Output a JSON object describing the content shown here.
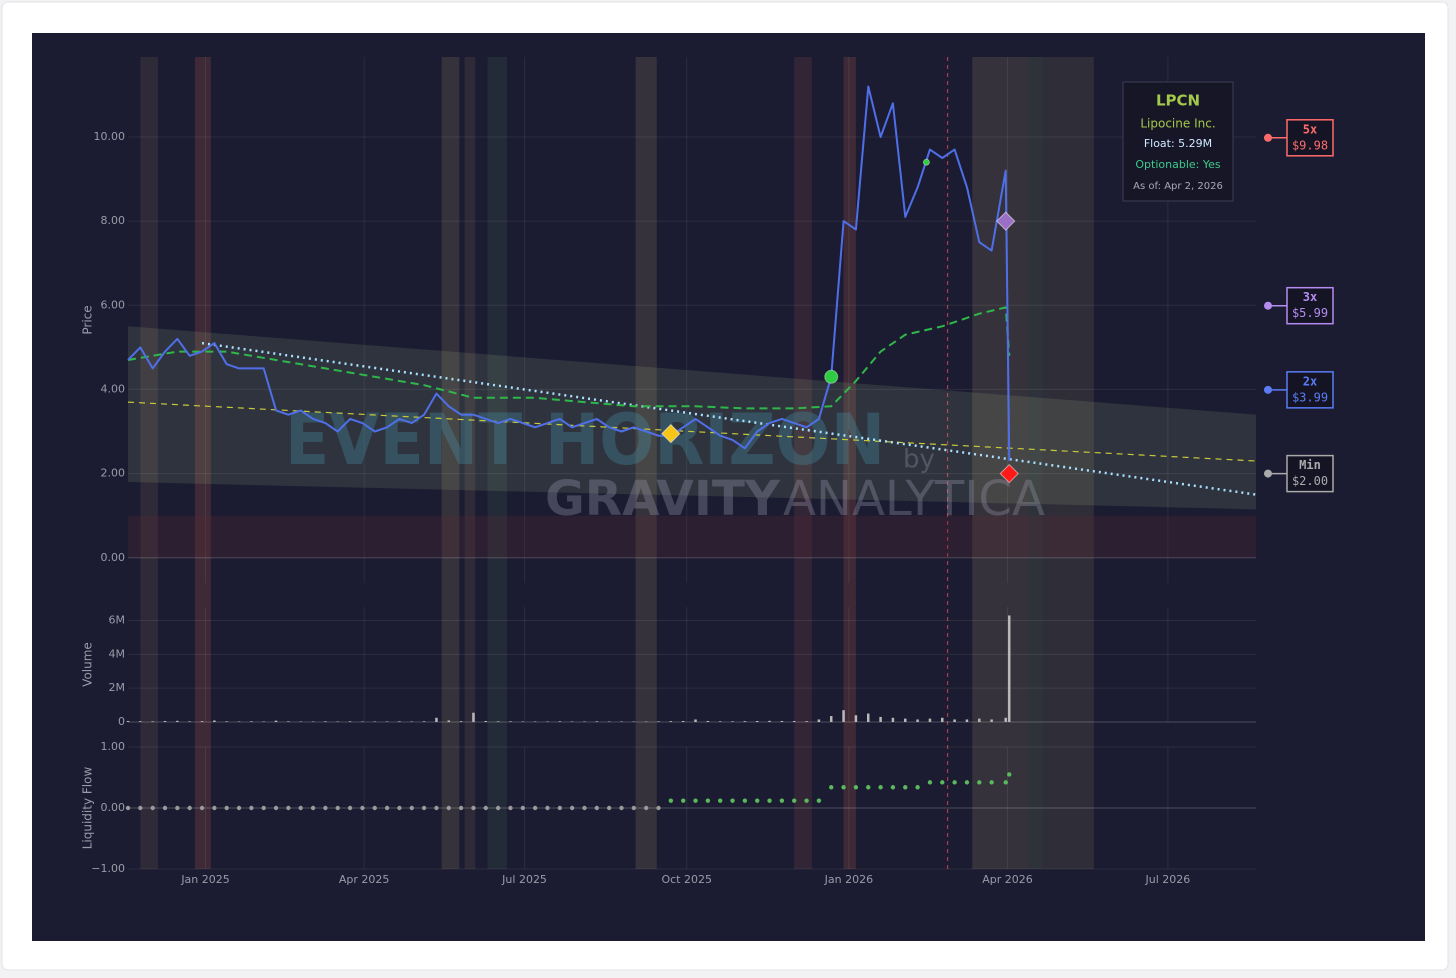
{
  "chart_data": [
    {
      "type": "line",
      "y_label": "Price",
      "xlim": [
        "2024-11-18",
        "2026-08-20"
      ],
      "ylim": [
        -0.6,
        11.9
      ],
      "yticks": [
        {
          "value": 0,
          "label": "0.00"
        },
        {
          "value": 2,
          "label": "2.00"
        },
        {
          "value": 4,
          "label": "4.00"
        },
        {
          "value": 6,
          "label": "6.00"
        },
        {
          "value": 8,
          "label": "8.00"
        },
        {
          "value": 10,
          "label": "10.00"
        }
      ],
      "grid": true,
      "series": [
        {
          "color": "#4f6fe8",
          "width": 2,
          "x": [
            "2024-11-18",
            "2024-11-25",
            "2024-12-02",
            "2024-12-09",
            "2024-12-16",
            "2024-12-23",
            "2024-12-30",
            "2025-01-06",
            "2025-01-13",
            "2025-01-20",
            "2025-01-27",
            "2025-02-03",
            "2025-02-10",
            "2025-02-17",
            "2025-02-24",
            "2025-03-03",
            "2025-03-10",
            "2025-03-17",
            "2025-03-24",
            "2025-03-31",
            "2025-04-07",
            "2025-04-14",
            "2025-04-21",
            "2025-04-28",
            "2025-05-05",
            "2025-05-12",
            "2025-05-19",
            "2025-05-26",
            "2025-06-02",
            "2025-06-09",
            "2025-06-16",
            "2025-06-23",
            "2025-06-30",
            "2025-07-07",
            "2025-07-14",
            "2025-07-21",
            "2025-07-28",
            "2025-08-04",
            "2025-08-11",
            "2025-08-18",
            "2025-08-25",
            "2025-09-01",
            "2025-09-08",
            "2025-09-15",
            "2025-09-22",
            "2025-09-29",
            "2025-10-06",
            "2025-10-13",
            "2025-10-20",
            "2025-10-27",
            "2025-11-03",
            "2025-11-10",
            "2025-11-17",
            "2025-11-24",
            "2025-12-01",
            "2025-12-08",
            "2025-12-15",
            "2025-12-22",
            "2025-12-29",
            "2026-01-05",
            "2026-01-12",
            "2026-01-19",
            "2026-01-26",
            "2026-02-02",
            "2026-02-09",
            "2026-02-16",
            "2026-02-23",
            "2026-03-02",
            "2026-03-09",
            "2026-03-16",
            "2026-03-23",
            "2026-03-31",
            "2026-04-02"
          ],
          "values": [
            4.7,
            5.0,
            4.5,
            4.9,
            5.2,
            4.8,
            4.9,
            5.1,
            4.6,
            4.5,
            4.5,
            4.5,
            3.5,
            3.4,
            3.5,
            3.3,
            3.2,
            3.0,
            3.3,
            3.2,
            3.0,
            3.1,
            3.3,
            3.2,
            3.4,
            3.9,
            3.6,
            3.4,
            3.4,
            3.3,
            3.2,
            3.3,
            3.2,
            3.1,
            3.2,
            3.3,
            3.1,
            3.2,
            3.3,
            3.1,
            3.0,
            3.1,
            3.0,
            2.9,
            2.9,
            3.1,
            3.3,
            3.1,
            2.9,
            2.8,
            2.6,
            3.0,
            3.2,
            3.3,
            3.2,
            3.1,
            3.3,
            4.3,
            8.0,
            7.8,
            11.2,
            10.0,
            10.8,
            8.1,
            8.8,
            9.7,
            9.5,
            9.7,
            8.8,
            7.5,
            7.3,
            9.2,
            2.3
          ]
        },
        {
          "color": "#2fb84a",
          "width": 2,
          "dash": "8,5",
          "x": [
            "2024-11-18",
            "2024-12-16",
            "2025-01-13",
            "2025-02-10",
            "2025-03-10",
            "2025-04-07",
            "2025-05-05",
            "2025-06-02",
            "2025-07-07",
            "2025-08-04",
            "2025-09-01",
            "2025-10-06",
            "2025-11-03",
            "2025-12-01",
            "2025-12-22",
            "2026-01-05",
            "2026-01-19",
            "2026-02-02",
            "2026-02-23",
            "2026-03-16",
            "2026-03-31",
            "2026-04-02"
          ],
          "values": [
            4.7,
            4.9,
            4.9,
            4.7,
            4.5,
            4.3,
            4.1,
            3.8,
            3.8,
            3.7,
            3.6,
            3.6,
            3.55,
            3.55,
            3.6,
            4.2,
            4.9,
            5.3,
            5.5,
            5.8,
            5.95,
            4.8
          ]
        },
        {
          "color": "#a8e0ff",
          "width": 2.5,
          "dash": "2,4",
          "x": [
            "2024-12-30",
            "2026-08-20"
          ],
          "values": [
            5.1,
            1.5
          ]
        },
        {
          "color": "#c8c83a",
          "width": 1.2,
          "dash": "6,5",
          "x": [
            "2024-11-18",
            "2026-08-20"
          ],
          "values": [
            3.7,
            2.3
          ]
        }
      ],
      "channel": {
        "x": [
          "2024-11-18",
          "2026-08-20"
        ],
        "upper": [
          5.5,
          3.4
        ],
        "lower": [
          1.8,
          1.15
        ],
        "color": "rgba(200,220,160,0.12)"
      },
      "zone": {
        "ylim": [
          0,
          1
        ],
        "color": "rgba(90,40,50,0.25)"
      },
      "highlight_ranges": [
        {
          "x": [
            "2024-11-25",
            "2024-12-05"
          ],
          "color": "rgba(200,150,110,0.12)"
        },
        {
          "x": [
            "2024-12-26",
            "2025-01-04"
          ],
          "color": "rgba(220,110,80,0.18)"
        },
        {
          "x": [
            "2025-05-15",
            "2025-05-25"
          ],
          "color": "rgba(200,170,110,0.16)"
        },
        {
          "x": [
            "2025-05-28",
            "2025-06-03"
          ],
          "color": "rgba(200,150,110,0.12)"
        },
        {
          "x": [
            "2025-06-10",
            "2025-06-21"
          ],
          "color": "rgba(120,180,120,0.10)"
        },
        {
          "x": [
            "2025-09-02",
            "2025-09-14"
          ],
          "color": "rgba(200,170,110,0.16)"
        },
        {
          "x": [
            "2025-12-01",
            "2025-12-11"
          ],
          "color": "rgba(200,100,90,0.13)"
        },
        {
          "x": [
            "2025-12-29",
            "2026-01-05"
          ],
          "color": "rgba(220,110,80,0.18)"
        },
        {
          "x": [
            "2026-03-12",
            "2026-04-13"
          ],
          "color": "rgba(200,170,110,0.16)"
        },
        {
          "x": [
            "2026-04-13",
            "2026-04-21"
          ],
          "color": "rgba(160,190,120,0.14)"
        },
        {
          "x": [
            "2026-04-21",
            "2026-05-20"
          ],
          "color": "rgba(200,170,110,0.12)"
        }
      ],
      "vline": {
        "x": "2026-02-26",
        "color": "#b03a4a"
      },
      "markers": [
        {
          "x": "2025-09-22",
          "value": 2.95,
          "shape": "diamond",
          "color": "#f5c518"
        },
        {
          "x": "2025-12-22",
          "value": 4.3,
          "shape": "circle",
          "color": "#2ecc40"
        },
        {
          "x": "2026-02-14",
          "value": 9.4,
          "shape": "dot",
          "color": "#2ecc40"
        },
        {
          "x": "2026-03-31",
          "value": 8.0,
          "shape": "diamond",
          "color": "#9b6fc6"
        },
        {
          "x": "2026-04-02",
          "value": 2.0,
          "shape": "diamond",
          "color": "#ff1a1a"
        }
      ],
      "levels": [
        {
          "name": "5x",
          "value": 9.98,
          "value_label": "$9.98",
          "color": "#ff6b6b"
        },
        {
          "name": "3x",
          "value": 5.99,
          "value_label": "$5.99",
          "color": "#b48cf0"
        },
        {
          "name": "2x",
          "value": 3.99,
          "value_label": "$3.99",
          "color": "#5b7cf5"
        },
        {
          "name": "Min",
          "value": 2.0,
          "value_label": "$2.00",
          "color": "#aaaaaa"
        }
      ],
      "info": {
        "ticker": "LPCN",
        "company": "Lipocine Inc.",
        "float": "Float: 5.29M",
        "optionable": "Optionable: Yes",
        "as_of": "As of: Apr 2, 2026"
      },
      "watermark": {
        "title": "EVENT HORIZON",
        "by": "by",
        "brand_bold": "GRAVITY",
        "brand_light": "ANALYTICA"
      }
    },
    {
      "type": "bar",
      "y_label": "Volume",
      "color": "#b8b8b8",
      "xlim": [
        "2024-11-18",
        "2026-08-20"
      ],
      "ylim": [
        0,
        6800000
      ],
      "yticks": [
        0,
        {
          "value": 2000000,
          "label": "2M"
        },
        {
          "value": 4000000,
          "label": "4M"
        },
        {
          "value": 6000000,
          "label": "6M"
        }
      ],
      "grid": true,
      "x": [
        "2024-11-18",
        "2024-11-25",
        "2024-12-02",
        "2024-12-09",
        "2024-12-16",
        "2024-12-23",
        "2024-12-30",
        "2025-01-06",
        "2025-01-13",
        "2025-01-20",
        "2025-01-27",
        "2025-02-03",
        "2025-02-10",
        "2025-02-17",
        "2025-02-24",
        "2025-03-03",
        "2025-03-10",
        "2025-03-17",
        "2025-03-24",
        "2025-03-31",
        "2025-04-07",
        "2025-04-14",
        "2025-04-21",
        "2025-04-28",
        "2025-05-05",
        "2025-05-12",
        "2025-05-19",
        "2025-05-26",
        "2025-06-02",
        "2025-06-09",
        "2025-06-16",
        "2025-06-23",
        "2025-06-30",
        "2025-07-07",
        "2025-07-14",
        "2025-07-21",
        "2025-07-28",
        "2025-08-04",
        "2025-08-11",
        "2025-08-18",
        "2025-08-25",
        "2025-09-01",
        "2025-09-08",
        "2025-09-15",
        "2025-09-22",
        "2025-09-29",
        "2025-10-06",
        "2025-10-13",
        "2025-10-20",
        "2025-10-27",
        "2025-11-03",
        "2025-11-10",
        "2025-11-17",
        "2025-11-24",
        "2025-12-01",
        "2025-12-08",
        "2025-12-15",
        "2025-12-22",
        "2025-12-29",
        "2026-01-05",
        "2026-01-12",
        "2026-01-19",
        "2026-01-26",
        "2026-02-02",
        "2026-02-09",
        "2026-02-16",
        "2026-02-23",
        "2026-03-02",
        "2026-03-09",
        "2026-03-16",
        "2026-03-23",
        "2026-03-31",
        "2026-04-02"
      ],
      "values": [
        60000,
        50000,
        40000,
        60000,
        70000,
        40000,
        50000,
        90000,
        40000,
        30000,
        40000,
        30000,
        80000,
        40000,
        30000,
        30000,
        40000,
        30000,
        40000,
        30000,
        30000,
        30000,
        40000,
        30000,
        40000,
        250000,
        90000,
        50000,
        550000,
        60000,
        40000,
        40000,
        30000,
        30000,
        30000,
        40000,
        30000,
        30000,
        40000,
        30000,
        30000,
        30000,
        30000,
        40000,
        50000,
        60000,
        150000,
        60000,
        40000,
        40000,
        50000,
        60000,
        70000,
        60000,
        60000,
        50000,
        150000,
        350000,
        700000,
        400000,
        500000,
        300000,
        250000,
        200000,
        150000,
        200000,
        250000,
        150000,
        150000,
        200000,
        150000,
        250000,
        6300000
      ]
    },
    {
      "type": "scatter",
      "y_label": "Liquidity Flow",
      "color": "#5cb85c",
      "neutral_color": "#9a9a9a",
      "xlim": [
        "2024-11-18",
        "2026-08-20"
      ],
      "ylim": [
        -1,
        1
      ],
      "yticks": [
        {
          "value": -1,
          "label": "−1.00"
        },
        {
          "value": 0,
          "label": "0.00"
        },
        {
          "value": 1,
          "label": "1.00"
        }
      ],
      "xticks": [
        {
          "value": "2025-01-01",
          "label": "Jan 2025"
        },
        {
          "value": "2025-04-01",
          "label": "Apr 2025"
        },
        {
          "value": "2025-07-01",
          "label": "Jul 2025"
        },
        {
          "value": "2025-10-01",
          "label": "Oct 2025"
        },
        {
          "value": "2026-01-01",
          "label": "Jan 2026"
        },
        {
          "value": "2026-04-01",
          "label": "Apr 2026"
        },
        {
          "value": "2026-07-01",
          "label": "Jul 2026"
        }
      ],
      "grid": true,
      "x": [
        "2024-11-18",
        "2024-11-25",
        "2024-12-02",
        "2024-12-09",
        "2024-12-16",
        "2024-12-23",
        "2024-12-30",
        "2025-01-06",
        "2025-01-13",
        "2025-01-20",
        "2025-01-27",
        "2025-02-03",
        "2025-02-10",
        "2025-02-17",
        "2025-02-24",
        "2025-03-03",
        "2025-03-10",
        "2025-03-17",
        "2025-03-24",
        "2025-03-31",
        "2025-04-07",
        "2025-04-14",
        "2025-04-21",
        "2025-04-28",
        "2025-05-05",
        "2025-05-12",
        "2025-05-19",
        "2025-05-26",
        "2025-06-02",
        "2025-06-09",
        "2025-06-16",
        "2025-06-23",
        "2025-06-30",
        "2025-07-07",
        "2025-07-14",
        "2025-07-21",
        "2025-07-28",
        "2025-08-04",
        "2025-08-11",
        "2025-08-18",
        "2025-08-25",
        "2025-09-01",
        "2025-09-08",
        "2025-09-15",
        "2025-09-22",
        "2025-09-29",
        "2025-10-06",
        "2025-10-13",
        "2025-10-20",
        "2025-10-27",
        "2025-11-03",
        "2025-11-10",
        "2025-11-17",
        "2025-11-24",
        "2025-12-01",
        "2025-12-08",
        "2025-12-15",
        "2025-12-22",
        "2025-12-29",
        "2026-01-05",
        "2026-01-12",
        "2026-01-19",
        "2026-01-26",
        "2026-02-02",
        "2026-02-09",
        "2026-02-16",
        "2026-02-23",
        "2026-03-02",
        "2026-03-09",
        "2026-03-16",
        "2026-03-23",
        "2026-03-31",
        "2026-04-02"
      ],
      "values": [
        0,
        0,
        0,
        0,
        0,
        0,
        0,
        0,
        0,
        0,
        0,
        0,
        0,
        0,
        0,
        0,
        0,
        0,
        0,
        0,
        0,
        0,
        0,
        0,
        0,
        0,
        0,
        0,
        0,
        0,
        0,
        0,
        0,
        0,
        0,
        0,
        0,
        0,
        0,
        0,
        0,
        0,
        0,
        0,
        0.12,
        0.12,
        0.12,
        0.12,
        0.12,
        0.12,
        0.12,
        0.12,
        0.12,
        0.12,
        0.12,
        0.12,
        0.12,
        0.34,
        0.34,
        0.34,
        0.34,
        0.34,
        0.34,
        0.34,
        0.34,
        0.42,
        0.42,
        0.42,
        0.42,
        0.42,
        0.42,
        0.42,
        0.55
      ]
    }
  ]
}
